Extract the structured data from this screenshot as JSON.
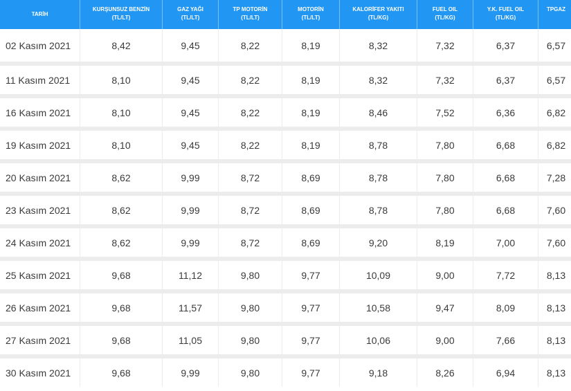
{
  "table": {
    "headers": [
      {
        "title": "TARİH",
        "unit": ""
      },
      {
        "title": "KURŞUNSUZ BENZİN",
        "unit": "(TL/LT)"
      },
      {
        "title": "GAZ YAĞI",
        "unit": "(TL/LT)"
      },
      {
        "title": "TP MOTORİN",
        "unit": "(TL/LT)"
      },
      {
        "title": "MOTORİN",
        "unit": "(TL/LT)"
      },
      {
        "title": "KALORİFER YAKITI",
        "unit": "(TL/KG)"
      },
      {
        "title": "FUEL OIL",
        "unit": "(TL/KG)"
      },
      {
        "title": "Y.K. FUEL OIL",
        "unit": "(TL/KG)"
      },
      {
        "title": "TPGAZ",
        "unit": ""
      }
    ],
    "rows": [
      [
        "02 Kasım 2021",
        "8,42",
        "9,45",
        "8,22",
        "8,19",
        "8,32",
        "7,32",
        "6,37",
        "6,57"
      ],
      [
        "11 Kasım 2021",
        "8,10",
        "9,45",
        "8,22",
        "8,19",
        "8,32",
        "7,32",
        "6,37",
        "6,57"
      ],
      [
        "16 Kasım 2021",
        "8,10",
        "9,45",
        "8,22",
        "8,19",
        "8,46",
        "7,52",
        "6,36",
        "6,82"
      ],
      [
        "19 Kasım 2021",
        "8,10",
        "9,45",
        "8,22",
        "8,19",
        "8,78",
        "7,80",
        "6,68",
        "6,82"
      ],
      [
        "20 Kasım 2021",
        "8,62",
        "9,99",
        "8,72",
        "8,69",
        "8,78",
        "7,80",
        "6,68",
        "7,28"
      ],
      [
        "23 Kasım 2021",
        "8,62",
        "9,99",
        "8,72",
        "8,69",
        "8,78",
        "7,80",
        "6,68",
        "7,60"
      ],
      [
        "24 Kasım 2021",
        "8,62",
        "9,99",
        "8,72",
        "8,69",
        "9,20",
        "8,19",
        "7,00",
        "7,60"
      ],
      [
        "25 Kasım 2021",
        "9,68",
        "11,12",
        "9,80",
        "9,77",
        "10,09",
        "9,00",
        "7,72",
        "8,13"
      ],
      [
        "26 Kasım 2021",
        "9,68",
        "11,57",
        "9,80",
        "9,77",
        "10,58",
        "9,47",
        "8,09",
        "8,13"
      ],
      [
        "27 Kasım 2021",
        "9,68",
        "11,05",
        "9,80",
        "9,77",
        "10,06",
        "9,00",
        "7,66",
        "8,13"
      ],
      [
        "30 Kasım 2021",
        "9,68",
        "9,99",
        "9,80",
        "9,77",
        "9,18",
        "8,26",
        "6,94",
        "8,13"
      ]
    ]
  },
  "colors": {
    "header_bg": "#2196f3",
    "header_text": "#ffffff",
    "row_separator": "#ececec",
    "cell_text": "#3a3a3a"
  }
}
